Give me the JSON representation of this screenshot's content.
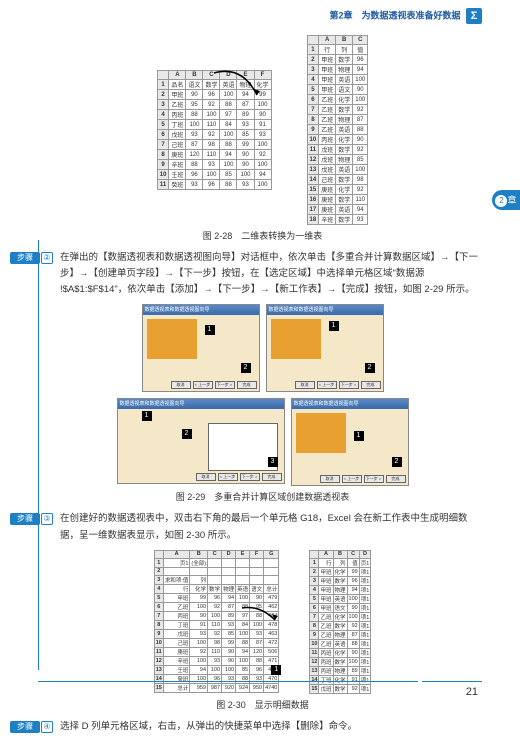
{
  "header": {
    "chapter": "第2章　为数据透视表准备好数据",
    "sigma": "Σ"
  },
  "sideTab": {
    "num": "2",
    "label": "章"
  },
  "pageNum": "21",
  "fig1": {
    "caption": "图 2-28　二维表转换为一维表",
    "left": {
      "cols": [
        "",
        "A",
        "B",
        "C",
        "D",
        "E",
        "F"
      ],
      "rows": [
        [
          "1",
          "品名",
          "语文",
          "数学",
          "英语",
          "物理",
          "化学"
        ],
        [
          "2",
          "甲班",
          "90",
          "96",
          "100",
          "94",
          "99"
        ],
        [
          "3",
          "乙班",
          "95",
          "92",
          "88",
          "87",
          "100"
        ],
        [
          "4",
          "丙班",
          "88",
          "100",
          "97",
          "89",
          "90"
        ],
        [
          "5",
          "丁班",
          "100",
          "110",
          "84",
          "93",
          "91"
        ],
        [
          "6",
          "戊班",
          "93",
          "92",
          "100",
          "85",
          "93"
        ],
        [
          "7",
          "己班",
          "87",
          "98",
          "88",
          "99",
          "100"
        ],
        [
          "8",
          "庚班",
          "120",
          "110",
          "94",
          "90",
          "92"
        ],
        [
          "9",
          "辛班",
          "88",
          "93",
          "100",
          "90",
          "100"
        ],
        [
          "10",
          "壬班",
          "96",
          "100",
          "85",
          "100",
          "94"
        ],
        [
          "11",
          "癸班",
          "93",
          "96",
          "88",
          "93",
          "100"
        ]
      ]
    },
    "right": {
      "cols": [
        "",
        "A",
        "B",
        "C"
      ],
      "rows": [
        [
          "1",
          "行",
          "列",
          "值"
        ],
        [
          "2",
          "甲班",
          "数学",
          "96"
        ],
        [
          "3",
          "甲班",
          "物理",
          "94"
        ],
        [
          "4",
          "甲班",
          "英语",
          "100"
        ],
        [
          "5",
          "甲班",
          "语文",
          "90"
        ],
        [
          "6",
          "乙班",
          "化学",
          "100"
        ],
        [
          "7",
          "乙班",
          "数学",
          "92"
        ],
        [
          "8",
          "乙班",
          "物理",
          "87"
        ],
        [
          "9",
          "乙班",
          "英语",
          "88"
        ],
        [
          "10",
          "丙班",
          "化学",
          "90"
        ],
        [
          "11",
          "戊班",
          "数学",
          "92"
        ],
        [
          "12",
          "戊班",
          "物理",
          "85"
        ],
        [
          "13",
          "戊班",
          "英语",
          "100"
        ],
        [
          "14",
          "己班",
          "数学",
          "98"
        ],
        [
          "15",
          "庚班",
          "化学",
          "92"
        ],
        [
          "16",
          "庚班",
          "数学",
          "110"
        ],
        [
          "17",
          "庚班",
          "英语",
          "94"
        ],
        [
          "18",
          "辛班",
          "数学",
          "93"
        ]
      ]
    }
  },
  "step2": {
    "label": "步骤",
    "num": "②",
    "text": "在弹出的【数据透视表和数据透视图向导】对话框中，依次单击【多重合并计算数据区域】→【下一步】→【创建单页字段】→【下一步】按钮，在【选定区域】中选择单元格区域\"数据源 !$A$1:$F$14\"，依次单击【添加】→【下一步】→【新工作表】→【完成】按钮，如图 2-29 所示。"
  },
  "fig2": {
    "caption": "图 2-29　多重合并计算区域创建数据透视表",
    "wizardTitle": "数据透视表和数据透视图向导",
    "btns": {
      "cancel": "取消",
      "back": "< 上一步",
      "next": "下一步 >",
      "finish": "完成"
    }
  },
  "step3": {
    "label": "步骤",
    "num": "③",
    "text": "在创建好的数据透视表中，双击右下角的最后一个单元格 G18，Excel 会在新工作表中生成明细数据，呈一维数据表显示，如图 2-30 所示。"
  },
  "fig3": {
    "caption": "图 2-30　显示明细数据",
    "left": {
      "cols": [
        "",
        "A",
        "B",
        "C",
        "D",
        "E",
        "F",
        "G"
      ],
      "rows": [
        [
          "1",
          "页1",
          "(全部)",
          "",
          "",
          "",
          "",
          ""
        ],
        [
          "2",
          "",
          "",
          "",
          "",
          "",
          "",
          ""
        ],
        [
          "3",
          "求和项:值",
          "列",
          "",
          "",
          "",
          "",
          ""
        ],
        [
          "4",
          "行",
          "化学",
          "数学",
          "物理",
          "英语",
          "语文",
          "总计"
        ],
        [
          "5",
          "甲班",
          "99",
          "96",
          "94",
          "100",
          "90",
          "479"
        ],
        [
          "6",
          "乙班",
          "100",
          "92",
          "87",
          "88",
          "95",
          "462"
        ],
        [
          "7",
          "丙班",
          "90",
          "100",
          "89",
          "97",
          "88",
          "464"
        ],
        [
          "8",
          "丁班",
          "91",
          "110",
          "93",
          "84",
          "100",
          "478"
        ],
        [
          "9",
          "戊班",
          "93",
          "92",
          "85",
          "100",
          "93",
          "463"
        ],
        [
          "10",
          "己班",
          "100",
          "98",
          "99",
          "88",
          "87",
          "472"
        ],
        [
          "11",
          "庚班",
          "92",
          "110",
          "90",
          "94",
          "120",
          "506"
        ],
        [
          "12",
          "辛班",
          "100",
          "93",
          "90",
          "100",
          "88",
          "471"
        ],
        [
          "13",
          "壬班",
          "94",
          "100",
          "100",
          "85",
          "96",
          "475"
        ],
        [
          "14",
          "癸班",
          "100",
          "96",
          "93",
          "88",
          "93",
          "470"
        ],
        [
          "15",
          "总计",
          "959",
          "987",
          "920",
          "924",
          "950",
          "4740"
        ]
      ]
    },
    "right": {
      "cols": [
        "",
        "A",
        "B",
        "C",
        "D"
      ],
      "rows": [
        [
          "1",
          "行",
          "列",
          "值",
          "页1"
        ],
        [
          "2",
          "甲班",
          "化学",
          "99",
          "项1"
        ],
        [
          "3",
          "甲班",
          "数学",
          "96",
          "项1"
        ],
        [
          "4",
          "甲班",
          "物理",
          "94",
          "项1"
        ],
        [
          "5",
          "甲班",
          "英语",
          "100",
          "项1"
        ],
        [
          "6",
          "甲班",
          "语文",
          "90",
          "项1"
        ],
        [
          "7",
          "乙班",
          "化学",
          "100",
          "项1"
        ],
        [
          "8",
          "乙班",
          "数学",
          "92",
          "项1"
        ],
        [
          "9",
          "乙班",
          "物理",
          "87",
          "项1"
        ],
        [
          "10",
          "乙班",
          "英语",
          "88",
          "项1"
        ],
        [
          "11",
          "丙班",
          "化学",
          "90",
          "项1"
        ],
        [
          "12",
          "丙班",
          "数学",
          "100",
          "项1"
        ],
        [
          "13",
          "丙班",
          "物理",
          "89",
          "项1"
        ],
        [
          "14",
          "丁班",
          "化学",
          "91",
          "项1"
        ],
        [
          "15",
          "戊班",
          "数学",
          "92",
          "项1"
        ]
      ]
    }
  },
  "step4": {
    "label": "步骤",
    "num": "④",
    "text": "选择 D 列单元格区域，右击，从弹出的快捷菜单中选择【删除】命令。"
  }
}
